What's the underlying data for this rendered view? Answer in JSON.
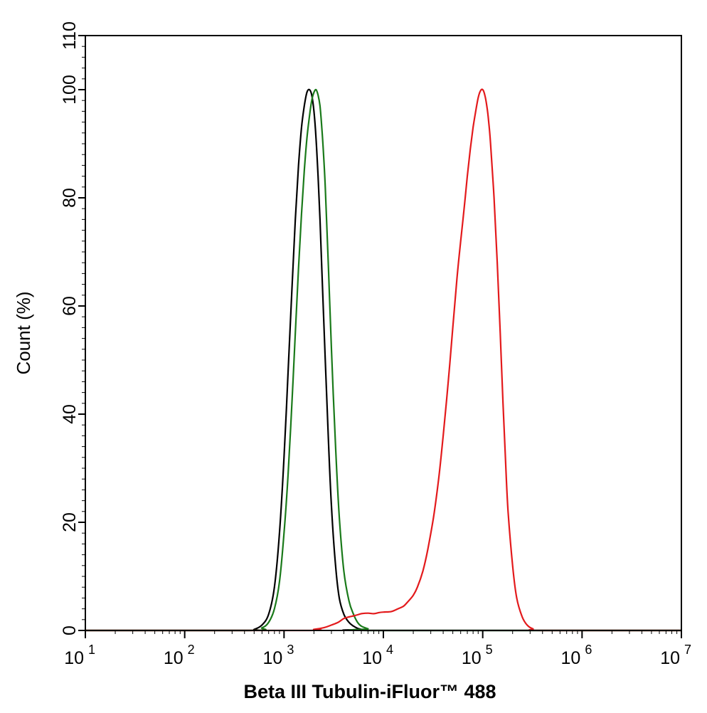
{
  "chart_data": {
    "type": "line",
    "xlabel": "Beta III Tubulin-iFluor™ 488",
    "ylabel": "Count  (%)",
    "x_scale": "log",
    "xlim": [
      10,
      10000000
    ],
    "ylim": [
      0,
      110
    ],
    "x_ticks": [
      {
        "base": "10",
        "exp": "1",
        "value": 10
      },
      {
        "base": "10",
        "exp": "2",
        "value": 100
      },
      {
        "base": "10",
        "exp": "3",
        "value": 1000
      },
      {
        "base": "10",
        "exp": "4",
        "value": 10000
      },
      {
        "base": "10",
        "exp": "5",
        "value": 100000
      },
      {
        "base": "10",
        "exp": "6",
        "value": 1000000
      },
      {
        "base": "10",
        "exp": "7",
        "value": 10000000
      }
    ],
    "y_ticks": [
      0,
      20,
      40,
      60,
      80,
      100,
      110
    ],
    "grid": false,
    "legend": "none",
    "series": [
      {
        "color": "#000000",
        "x": [
          10,
          400,
          500,
          600,
          700,
          800,
          900,
          1000,
          1100,
          1200,
          1300,
          1400,
          1500,
          1600,
          1700,
          1800,
          1900,
          2000,
          2100,
          2200,
          2300,
          2400,
          2600,
          2800,
          3000,
          3300,
          3600,
          4000,
          4500,
          5000,
          5500,
          6000,
          7000,
          10000000
        ],
        "y": [
          0,
          0,
          0.2,
          1,
          3,
          8,
          18,
          32,
          48,
          63,
          76,
          86,
          93,
          97,
          99.5,
          100,
          99,
          96,
          91,
          84,
          76,
          67,
          50,
          35,
          23,
          12,
          6,
          3,
          1.5,
          0.8,
          0.4,
          0.2,
          0,
          0
        ]
      },
      {
        "color": "#1a7a1a",
        "x": [
          10,
          450,
          600,
          700,
          800,
          900,
          1000,
          1100,
          1200,
          1300,
          1400,
          1500,
          1600,
          1700,
          1800,
          1900,
          2000,
          2100,
          2200,
          2300,
          2400,
          2500,
          2600,
          2800,
          3000,
          3300,
          3600,
          4000,
          4500,
          5000,
          5500,
          6000,
          7000,
          8000,
          10000000
        ],
        "y": [
          0,
          0,
          0.5,
          1.5,
          4,
          9,
          18,
          29,
          42,
          55,
          67,
          77,
          85,
          91,
          95,
          98,
          99.5,
          100,
          99,
          97,
          93,
          88,
          82,
          67,
          52,
          34,
          21,
          11,
          5.5,
          3,
          1.5,
          0.8,
          0.3,
          0,
          0
        ]
      },
      {
        "color": "#e31a1c",
        "x": [
          10,
          1500,
          2000,
          2500,
          3000,
          3500,
          4000,
          4500,
          5000,
          5500,
          6000,
          7000,
          8000,
          9000,
          10000,
          12000,
          14000,
          16000,
          18000,
          20000,
          22000,
          25000,
          28000,
          32000,
          36000,
          40000,
          45000,
          50000,
          55000,
          60000,
          65000,
          70000,
          75000,
          80000,
          85000,
          90000,
          95000,
          100000,
          105000,
          110000,
          115000,
          120000,
          130000,
          140000,
          150000,
          160000,
          170000,
          180000,
          200000,
          220000,
          250000,
          280000,
          320000,
          400000,
          10000000
        ],
        "y": [
          0,
          0,
          0.2,
          0.5,
          1,
          1.5,
          2.2,
          2.5,
          2.7,
          2.9,
          3.1,
          3.2,
          3.1,
          3.3,
          3.4,
          3.5,
          4,
          4.5,
          5.5,
          6.5,
          8,
          11,
          15,
          21,
          28,
          36,
          46,
          56,
          65,
          72,
          78,
          84,
          89,
          93,
          96,
          98.5,
          99.8,
          100,
          99,
          97,
          94,
          90,
          80,
          68,
          55,
          42,
          31,
          22,
          12,
          6,
          2.5,
          1,
          0.3,
          0,
          0
        ]
      }
    ]
  }
}
